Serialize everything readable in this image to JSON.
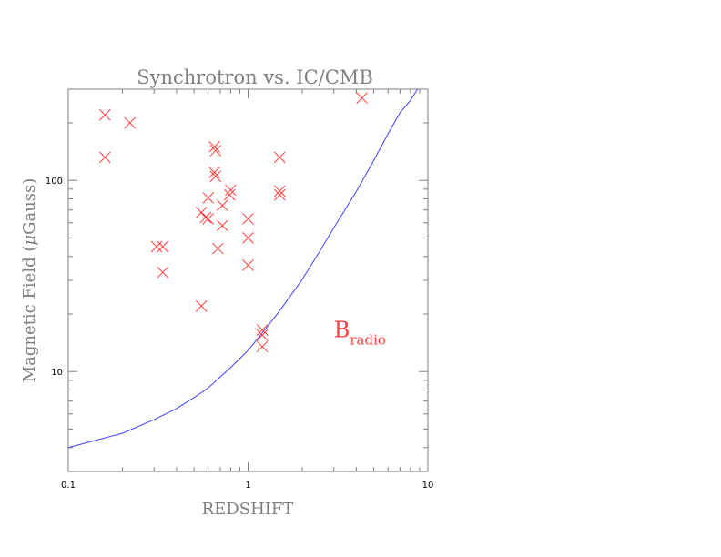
{
  "chart_data": {
    "type": "scatter",
    "title": "Synchrotron vs. IC/CMB",
    "xlabel": "REDSHIFT",
    "ylabel_main": "Magnetic Field (",
    "ylabel_greek": "μ",
    "ylabel_rest": "Gauss)",
    "x_scale": "log",
    "y_scale": "log",
    "xlim": [
      0.1,
      10
    ],
    "ylim": [
      3,
      300
    ],
    "x_ticks": [
      {
        "value": 0.1,
        "label": "0.1"
      },
      {
        "value": 1,
        "label": "1"
      },
      {
        "value": 10,
        "label": "10"
      }
    ],
    "y_ticks": [
      {
        "value": 10,
        "label": "10"
      },
      {
        "value": 100,
        "label": "100"
      }
    ],
    "grid": false,
    "series": [
      {
        "kind": "points",
        "marker": "x",
        "color": "#ff4040",
        "points": [
          {
            "x": 0.16,
            "y": 220
          },
          {
            "x": 0.16,
            "y": 132
          },
          {
            "x": 0.22,
            "y": 200
          },
          {
            "x": 0.31,
            "y": 45
          },
          {
            "x": 0.335,
            "y": 45
          },
          {
            "x": 0.335,
            "y": 33
          },
          {
            "x": 0.55,
            "y": 68
          },
          {
            "x": 0.55,
            "y": 22
          },
          {
            "x": 0.58,
            "y": 64
          },
          {
            "x": 0.6,
            "y": 63
          },
          {
            "x": 0.6,
            "y": 81
          },
          {
            "x": 0.65,
            "y": 150
          },
          {
            "x": 0.66,
            "y": 143
          },
          {
            "x": 0.65,
            "y": 110
          },
          {
            "x": 0.66,
            "y": 105
          },
          {
            "x": 0.68,
            "y": 44
          },
          {
            "x": 0.72,
            "y": 74
          },
          {
            "x": 0.72,
            "y": 58
          },
          {
            "x": 0.8,
            "y": 89
          },
          {
            "x": 0.79,
            "y": 84
          },
          {
            "x": 1.0,
            "y": 63
          },
          {
            "x": 1.0,
            "y": 50
          },
          {
            "x": 1.0,
            "y": 36
          },
          {
            "x": 1.2,
            "y": 16.5
          },
          {
            "x": 1.2,
            "y": 15.5
          },
          {
            "x": 1.2,
            "y": 13.5
          },
          {
            "x": 1.5,
            "y": 132
          },
          {
            "x": 1.5,
            "y": 88
          },
          {
            "x": 1.5,
            "y": 84
          },
          {
            "x": 4.3,
            "y": 270
          }
        ]
      },
      {
        "kind": "line",
        "color": "#4040ff",
        "points": [
          {
            "x": 0.1,
            "y": 4.0
          },
          {
            "x": 0.2,
            "y": 4.75
          },
          {
            "x": 0.3,
            "y": 5.6
          },
          {
            "x": 0.4,
            "y": 6.4
          },
          {
            "x": 0.5,
            "y": 7.3
          },
          {
            "x": 0.6,
            "y": 8.2
          },
          {
            "x": 0.8,
            "y": 10.5
          },
          {
            "x": 1.0,
            "y": 12.9
          },
          {
            "x": 1.25,
            "y": 16.7
          },
          {
            "x": 1.5,
            "y": 20.8
          },
          {
            "x": 2.0,
            "y": 30.3
          },
          {
            "x": 2.5,
            "y": 42.5
          },
          {
            "x": 3.0,
            "y": 56.5
          },
          {
            "x": 4.0,
            "y": 87.5
          },
          {
            "x": 5.0,
            "y": 127
          },
          {
            "x": 6.0,
            "y": 175
          },
          {
            "x": 7.0,
            "y": 226
          },
          {
            "x": 8.0,
            "y": 262
          },
          {
            "x": 8.75,
            "y": 300
          }
        ]
      }
    ],
    "annotation": {
      "main": "B",
      "sub": "radio",
      "color": "#ff4040",
      "x": 3.0,
      "y": 16.5
    }
  }
}
